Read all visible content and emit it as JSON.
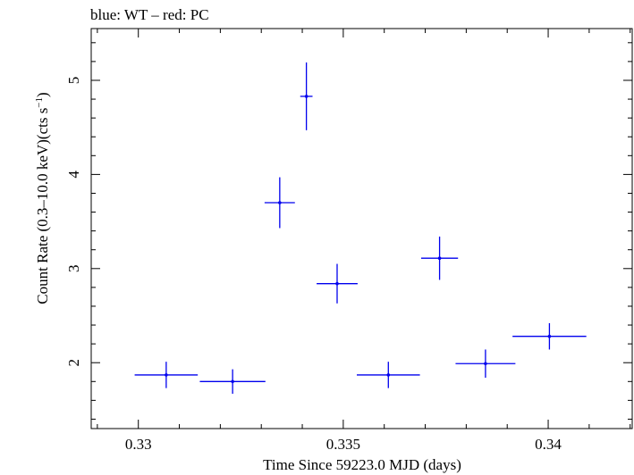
{
  "chart_data": {
    "type": "scatter",
    "title": "blue: WT – red: PC",
    "xlabel": "Time Since 59223.0 MJD (days)",
    "ylabel_main": "Count Rate (0.3–10.0 keV)(cts s",
    "ylabel_sup": "−1",
    "ylabel_close": ")",
    "xlim": [
      0.32885,
      0.34205
    ],
    "ylim": [
      1.3,
      5.55
    ],
    "xticks_major": [
      0.33,
      0.335,
      0.34
    ],
    "xtick_labels": [
      "0.33",
      "0.335",
      "0.34"
    ],
    "xticks_minor_step": 0.001,
    "yticks_major": [
      2,
      3,
      4,
      5
    ],
    "ytick_labels": [
      "2",
      "3",
      "4",
      "5"
    ],
    "yticks_minor_step": 0.2,
    "grid": false,
    "series": [
      {
        "color": "#0000ee",
        "points": [
          {
            "x": 0.33068,
            "y": 1.87,
            "xerr": 0.00077,
            "yerr": 0.14
          },
          {
            "x": 0.3323,
            "y": 1.8,
            "xerr": 0.0008,
            "yerr": 0.13
          },
          {
            "x": 0.33345,
            "y": 3.7,
            "xerr": 0.00037,
            "yerr": 0.27
          },
          {
            "x": 0.3341,
            "y": 4.83,
            "xerr": 0.00015,
            "yerr": 0.36
          },
          {
            "x": 0.33485,
            "y": 2.84,
            "xerr": 0.0005,
            "yerr": 0.21
          },
          {
            "x": 0.3361,
            "y": 1.87,
            "xerr": 0.00077,
            "yerr": 0.14
          },
          {
            "x": 0.33735,
            "y": 3.11,
            "xerr": 0.00045,
            "yerr": 0.23
          },
          {
            "x": 0.33847,
            "y": 1.99,
            "xerr": 0.00073,
            "yerr": 0.15
          },
          {
            "x": 0.34003,
            "y": 2.28,
            "xerr": 0.0009,
            "yerr": 0.14
          }
        ]
      }
    ]
  }
}
